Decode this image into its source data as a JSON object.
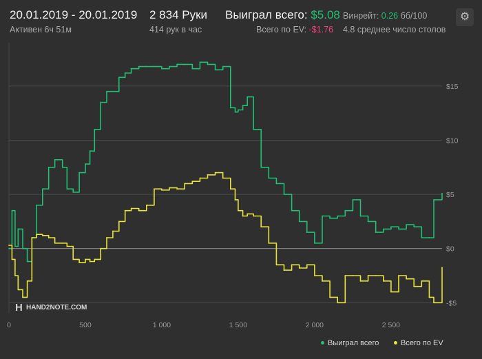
{
  "header": {
    "date_range": "20.01.2019 - 20.01.2019",
    "active_time": "Активен 6ч 51м",
    "hands": "2 834 Руки",
    "hands_per_hour": "414 рук в час",
    "won_total_label": "Выиграл всего:",
    "won_total_value": "$5.08",
    "ev_total_label": "Всего по EV:",
    "ev_total_value": "-$1.76",
    "winrate_label": "Винрейт:",
    "winrate_value": "0.26",
    "winrate_unit": "бб/100",
    "avg_tables": "4.8 среднее число столов",
    "settings_icon": "gear-icon"
  },
  "watermark": {
    "brand": "HAND2NOTE.COM",
    "logo_icon": "h2n-logo-icon"
  },
  "colors": {
    "background": "#2f2f2f",
    "won": "#1fbf74",
    "ev": "#e8e43a",
    "grid": "#4a4a4a",
    "zero": "#8c8c8c"
  },
  "chart_data": {
    "type": "line",
    "title": "",
    "xlabel": "",
    "ylabel": "",
    "xlim": [
      0,
      2834
    ],
    "ylim": [
      -6,
      19
    ],
    "x_ticks": [
      0,
      500,
      1000,
      1500,
      2000,
      2500
    ],
    "x_tick_labels": [
      "0",
      "500",
      "1 000",
      "1 500",
      "2 000",
      "2 500"
    ],
    "y_ticks": [
      15,
      10,
      5,
      0,
      -5
    ],
    "y_tick_labels": [
      "$15",
      "$10",
      "$5",
      "$0",
      "-$5"
    ],
    "grid": true,
    "legend_position": "bottom-right",
    "series": [
      {
        "name": "Выиграл всего",
        "color": "#1fbf74",
        "x": [
          0,
          20,
          40,
          60,
          90,
          120,
          150,
          180,
          220,
          260,
          300,
          350,
          380,
          420,
          460,
          500,
          530,
          560,
          600,
          640,
          680,
          720,
          760,
          800,
          850,
          900,
          950,
          1000,
          1050,
          1100,
          1150,
          1200,
          1250,
          1300,
          1350,
          1400,
          1450,
          1480,
          1500,
          1530,
          1560,
          1600,
          1650,
          1700,
          1750,
          1800,
          1850,
          1900,
          1950,
          2000,
          2050,
          2100,
          2150,
          2200,
          2250,
          2300,
          2350,
          2400,
          2450,
          2500,
          2550,
          2600,
          2650,
          2700,
          2750,
          2780,
          2834
        ],
        "values": [
          0,
          3.5,
          0.2,
          1.8,
          0,
          -1.2,
          1.0,
          4.0,
          5.5,
          7.5,
          8.2,
          7.5,
          5.5,
          5.2,
          7.0,
          7.8,
          9.0,
          11.0,
          13.5,
          14.5,
          14.5,
          15.8,
          16.2,
          16.6,
          16.8,
          16.8,
          16.8,
          16.6,
          16.8,
          17.0,
          17.0,
          16.6,
          17.2,
          17.0,
          16.5,
          16.8,
          13.0,
          12.6,
          12.8,
          13.2,
          14.0,
          11.0,
          7.5,
          6.5,
          6.0,
          5.0,
          3.5,
          2.5,
          1.5,
          0.5,
          3.0,
          2.8,
          3.0,
          3.5,
          4.5,
          3.0,
          2.5,
          1.5,
          1.8,
          2.0,
          1.8,
          2.2,
          2.0,
          1.0,
          1.0,
          4.5,
          5.08
        ]
      },
      {
        "name": "Всего по EV",
        "color": "#e8e43a",
        "x": [
          0,
          20,
          40,
          60,
          90,
          120,
          150,
          180,
          220,
          260,
          300,
          350,
          380,
          420,
          460,
          500,
          530,
          560,
          600,
          640,
          680,
          720,
          760,
          800,
          850,
          900,
          950,
          1000,
          1050,
          1100,
          1150,
          1200,
          1250,
          1300,
          1350,
          1400,
          1450,
          1480,
          1500,
          1530,
          1560,
          1600,
          1650,
          1700,
          1750,
          1800,
          1850,
          1900,
          1950,
          2000,
          2050,
          2100,
          2150,
          2200,
          2250,
          2300,
          2350,
          2400,
          2450,
          2500,
          2550,
          2600,
          2650,
          2700,
          2750,
          2780,
          2834
        ],
        "values": [
          0.3,
          -1.0,
          -2.5,
          -3.8,
          -4.5,
          -3.0,
          1.0,
          1.3,
          1.2,
          1.0,
          0.5,
          0.5,
          0.2,
          -1.0,
          -1.3,
          -1.0,
          -1.2,
          -1.0,
          0.0,
          1.0,
          1.6,
          2.5,
          3.5,
          3.7,
          3.5,
          4.0,
          5.5,
          5.4,
          5.6,
          5.5,
          6.0,
          6.2,
          6.5,
          6.8,
          7.0,
          6.5,
          5.5,
          4.5,
          3.5,
          3.0,
          3.2,
          3.0,
          2.0,
          0.5,
          -1.5,
          -2.0,
          -1.5,
          -1.8,
          -1.5,
          -2.5,
          -3.0,
          -4.5,
          -5.0,
          -2.5,
          -2.5,
          -3.0,
          -2.5,
          -2.5,
          -3.0,
          -4.0,
          -2.5,
          -2.8,
          -3.5,
          -3.0,
          -4.5,
          -5.0,
          -1.76
        ]
      }
    ]
  }
}
